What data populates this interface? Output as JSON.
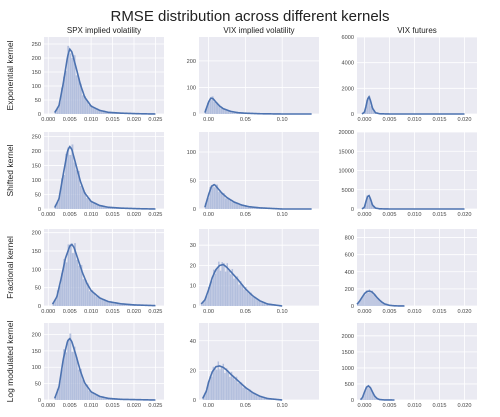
{
  "figure": {
    "title": "RMSE distribution across different kernels",
    "columns": [
      "SPX implied volatility",
      "VIX implied volatility",
      "VIX futures"
    ],
    "rows": [
      "Exponential kernel",
      "Shifted kernel",
      "Fractional kernel",
      "Log modulated kernel"
    ]
  },
  "colors": {
    "background": "#eaeaf2",
    "grid": "#ffffff",
    "bars": "#a9b7d9",
    "kde": "#4c72b0"
  },
  "chart_data": [
    {
      "type": "histogram",
      "row": "Exponential kernel",
      "column": "SPX implied volatility",
      "xlim": [
        -0.001,
        0.027
      ],
      "xticks": [
        "0.000",
        "0.005",
        "0.010",
        "0.015",
        "0.020",
        "0.025"
      ],
      "xtick_values": [
        0,
        0.005,
        0.01,
        0.015,
        0.02,
        0.025
      ],
      "ylim": [
        0,
        275
      ],
      "yticks": [
        0,
        50,
        100,
        150,
        200,
        250
      ],
      "kde": {
        "x": [
          0.0015,
          0.0025,
          0.0035,
          0.0045,
          0.005,
          0.0055,
          0.0065,
          0.0075,
          0.0085,
          0.01,
          0.012,
          0.014,
          0.017,
          0.021,
          0.025
        ],
        "y": [
          5,
          30,
          110,
          205,
          232,
          222,
          165,
          105,
          60,
          28,
          13,
          6,
          3,
          1,
          0
        ]
      }
    },
    {
      "type": "histogram",
      "row": "Exponential kernel",
      "column": "VIX implied volatility",
      "xlim": [
        -0.013,
        0.15
      ],
      "xticks": [
        "0.00",
        "0.05",
        "0.10"
      ],
      "xtick_values": [
        0,
        0.05,
        0.1
      ],
      "ylim": [
        0,
        290
      ],
      "yticks": [
        0,
        100,
        200
      ],
      "kde": {
        "x": [
          -0.005,
          0.0,
          0.003,
          0.006,
          0.01,
          0.015,
          0.02,
          0.03,
          0.04,
          0.05,
          0.07,
          0.1,
          0.14
        ],
        "y": [
          5,
          45,
          60,
          58,
          45,
          30,
          20,
          10,
          5,
          3,
          1,
          0,
          0
        ]
      }
    },
    {
      "type": "histogram",
      "row": "Exponential kernel",
      "column": "VIX futures",
      "xlim": [
        -0.0015,
        0.0225
      ],
      "xticks": [
        "0.000",
        "0.005",
        "0.010",
        "0.015",
        "0.020"
      ],
      "xtick_values": [
        0,
        0.005,
        0.01,
        0.015,
        0.02
      ],
      "ylim": [
        0,
        6000
      ],
      "yticks": [
        0,
        2000,
        4000,
        6000
      ],
      "kde": {
        "x": [
          -0.0005,
          0.0,
          0.0003,
          0.0006,
          0.0009,
          0.0012,
          0.0016,
          0.0022,
          0.003,
          0.005,
          0.01,
          0.02
        ],
        "y": [
          0,
          150,
          600,
          1150,
          1350,
          1050,
          450,
          100,
          20,
          0,
          0,
          0
        ]
      }
    },
    {
      "type": "histogram",
      "row": "Shifted kernel",
      "column": "SPX implied volatility",
      "xlim": [
        -0.001,
        0.027
      ],
      "xticks": [
        "0.000",
        "0.005",
        "0.010",
        "0.015",
        "0.020",
        "0.025"
      ],
      "xtick_values": [
        0,
        0.005,
        0.01,
        0.015,
        0.02,
        0.025
      ],
      "ylim": [
        0,
        265
      ],
      "yticks": [
        0,
        50,
        100,
        150,
        200,
        250
      ],
      "kde": {
        "x": [
          0.0015,
          0.0025,
          0.0035,
          0.0045,
          0.005,
          0.0055,
          0.0065,
          0.0075,
          0.0085,
          0.01,
          0.012,
          0.014,
          0.017,
          0.021,
          0.025
        ],
        "y": [
          5,
          35,
          120,
          200,
          215,
          205,
          150,
          95,
          55,
          26,
          12,
          6,
          3,
          1,
          0
        ]
      }
    },
    {
      "type": "histogram",
      "row": "Shifted kernel",
      "column": "VIX implied volatility",
      "xlim": [
        -0.013,
        0.15
      ],
      "xticks": [
        "0.00",
        "0.05",
        "0.10"
      ],
      "xtick_values": [
        0,
        0.05,
        0.1
      ],
      "ylim": [
        0,
        135
      ],
      "yticks": [
        0,
        50,
        100
      ],
      "kde": {
        "x": [
          -0.005,
          0.0,
          0.004,
          0.008,
          0.012,
          0.018,
          0.025,
          0.035,
          0.045,
          0.055,
          0.07,
          0.1,
          0.14
        ],
        "y": [
          3,
          25,
          40,
          43,
          37,
          28,
          20,
          12,
          7,
          4,
          2,
          0,
          0
        ]
      }
    },
    {
      "type": "histogram",
      "row": "Shifted kernel",
      "column": "VIX futures",
      "xlim": [
        -0.0015,
        0.0225
      ],
      "xticks": [
        "0.000",
        "0.005",
        "0.010",
        "0.015",
        "0.020"
      ],
      "xtick_values": [
        0,
        0.005,
        0.01,
        0.015,
        0.02
      ],
      "ylim": [
        0,
        20000
      ],
      "yticks": [
        0,
        5000,
        10000,
        15000,
        20000
      ],
      "kde": {
        "x": [
          -0.0005,
          0.0,
          0.0003,
          0.0006,
          0.0009,
          0.0012,
          0.0016,
          0.0022,
          0.003,
          0.005,
          0.01,
          0.02
        ],
        "y": [
          0,
          500,
          2000,
          3200,
          3500,
          2600,
          1000,
          250,
          50,
          0,
          0,
          0
        ]
      }
    },
    {
      "type": "histogram",
      "row": "Fractional kernel",
      "column": "SPX implied volatility",
      "xlim": [
        -0.001,
        0.027
      ],
      "xticks": [
        "0.000",
        "0.005",
        "0.010",
        "0.015",
        "0.020",
        "0.025"
      ],
      "xtick_values": [
        0,
        0.005,
        0.01,
        0.015,
        0.02,
        0.025
      ],
      "ylim": [
        0,
        210
      ],
      "yticks": [
        0,
        50,
        100,
        150,
        200
      ],
      "kde": {
        "x": [
          0.001,
          0.002,
          0.003,
          0.004,
          0.005,
          0.0055,
          0.006,
          0.007,
          0.008,
          0.009,
          0.01,
          0.012,
          0.014,
          0.017,
          0.02,
          0.025
        ],
        "y": [
          5,
          25,
          75,
          130,
          163,
          168,
          160,
          125,
          90,
          62,
          42,
          22,
          12,
          6,
          3,
          1
        ]
      }
    },
    {
      "type": "histogram",
      "row": "Fractional kernel",
      "column": "VIX implied volatility",
      "xlim": [
        -0.013,
        0.15
      ],
      "xticks": [
        "0.00",
        "0.05",
        "0.10"
      ],
      "xtick_values": [
        0,
        0.05,
        0.1
      ],
      "ylim": [
        0,
        38
      ],
      "yticks": [
        0,
        10,
        20,
        30
      ],
      "kde": {
        "x": [
          -0.01,
          -0.005,
          0.0,
          0.005,
          0.01,
          0.015,
          0.02,
          0.025,
          0.03,
          0.04,
          0.05,
          0.06,
          0.07,
          0.08,
          0.1
        ],
        "y": [
          1,
          3,
          8,
          14,
          18,
          20,
          20.5,
          19,
          17,
          13,
          8.5,
          5,
          2.5,
          1,
          0
        ]
      }
    },
    {
      "type": "histogram",
      "row": "Fractional kernel",
      "column": "VIX futures",
      "xlim": [
        -0.0015,
        0.0225
      ],
      "xticks": [
        "0.000",
        "0.005",
        "0.010",
        "0.015",
        "0.020"
      ],
      "xtick_values": [
        0,
        0.005,
        0.01,
        0.015,
        0.02
      ],
      "ylim": [
        0,
        900
      ],
      "yticks": [
        0,
        200,
        400,
        600,
        800
      ],
      "kde": {
        "x": [
          -0.0015,
          -0.001,
          -0.0005,
          0.0,
          0.0005,
          0.001,
          0.0015,
          0.002,
          0.0025,
          0.003,
          0.0035,
          0.004,
          0.005,
          0.006,
          0.008
        ],
        "y": [
          20,
          55,
          100,
          145,
          170,
          175,
          165,
          135,
          100,
          70,
          45,
          25,
          8,
          2,
          0
        ]
      }
    },
    {
      "type": "histogram",
      "row": "Log modulated kernel",
      "column": "SPX implied volatility",
      "xlim": [
        -0.001,
        0.027
      ],
      "xticks": [
        "0.000",
        "0.005",
        "0.010",
        "0.015",
        "0.020",
        "0.025"
      ],
      "xtick_values": [
        0,
        0.005,
        0.01,
        0.015,
        0.02,
        0.025
      ],
      "ylim": [
        0,
        235
      ],
      "yticks": [
        0,
        50,
        100,
        150,
        200
      ],
      "kde": {
        "x": [
          0.0015,
          0.0025,
          0.0035,
          0.0045,
          0.005,
          0.0055,
          0.0065,
          0.0075,
          0.0085,
          0.01,
          0.012,
          0.014,
          0.017,
          0.021,
          0.025
        ],
        "y": [
          5,
          40,
          125,
          180,
          188,
          178,
          135,
          88,
          52,
          25,
          11,
          5,
          2,
          1,
          0
        ]
      }
    },
    {
      "type": "histogram",
      "row": "Log modulated kernel",
      "column": "VIX implied volatility",
      "xlim": [
        -0.013,
        0.15
      ],
      "xticks": [
        "0.00",
        "0.05",
        "0.10"
      ],
      "xtick_values": [
        0,
        0.05,
        0.1
      ],
      "ylim": [
        0,
        52
      ],
      "yticks": [
        0,
        20,
        40
      ],
      "kde": {
        "x": [
          -0.008,
          -0.003,
          0.0,
          0.005,
          0.01,
          0.015,
          0.02,
          0.025,
          0.03,
          0.04,
          0.05,
          0.06,
          0.07,
          0.08,
          0.1
        ],
        "y": [
          1,
          6,
          12,
          19,
          22.5,
          23,
          22,
          20,
          17.5,
          13,
          8.5,
          5,
          2.5,
          1,
          0
        ]
      }
    },
    {
      "type": "histogram",
      "row": "Log modulated kernel",
      "column": "VIX futures",
      "xlim": [
        -0.0015,
        0.0225
      ],
      "xticks": [
        "0.000",
        "0.005",
        "0.010",
        "0.015",
        "0.020"
      ],
      "xtick_values": [
        0,
        0.005,
        0.01,
        0.015,
        0.02
      ],
      "ylim": [
        0,
        2400
      ],
      "yticks": [
        0,
        500,
        1000,
        1500,
        2000
      ],
      "kde": {
        "x": [
          -0.0008,
          -0.0004,
          0.0,
          0.0004,
          0.0008,
          0.0012,
          0.0016,
          0.002,
          0.0025,
          0.003,
          0.004,
          0.006
        ],
        "y": [
          10,
          80,
          250,
          400,
          440,
          380,
          250,
          130,
          50,
          15,
          2,
          0
        ]
      }
    }
  ]
}
